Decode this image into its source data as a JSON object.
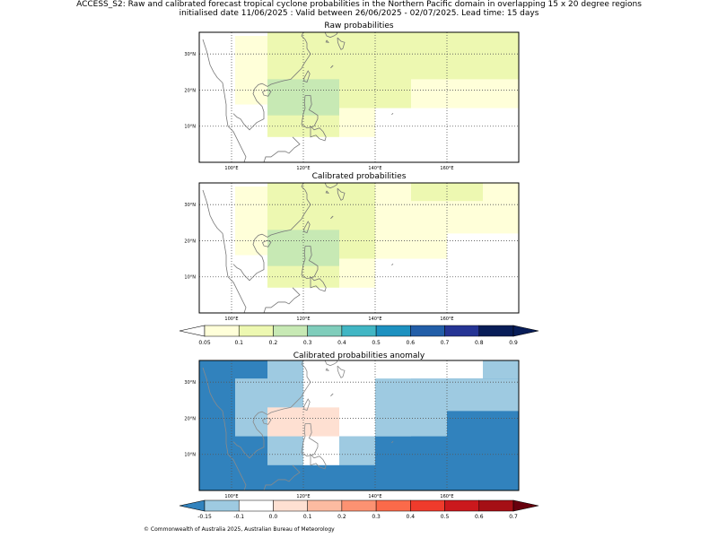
{
  "header": {
    "title_line1": "ACCESS_S2: Raw and calibrated forecast tropical cyclone probabilities in the Northern Pacific domain in overlapping 15 x 20 degree regions",
    "title_line2": "initialised date 11/06/2025 :  Valid between 26/06/2025 - 02/07/2025. Lead time: 15 days"
  },
  "map_extent": {
    "lon": [
      91,
      180
    ],
    "lat": [
      0,
      36
    ]
  },
  "gridlines": {
    "lon": [
      100,
      120,
      140,
      160
    ],
    "lat": [
      10,
      20,
      30
    ]
  },
  "lon_tick_labels": [
    "100°E",
    "120°E",
    "140°E",
    "160°E"
  ],
  "lat_tick_labels": [
    "10°N",
    "20°N",
    "30°N"
  ],
  "colors": {
    "coastline": "#777777",
    "land_anomaly": "#8a8a8a"
  },
  "panels": [
    {
      "title": "Raw probabilities",
      "cells": [
        {
          "lon": [
            101,
            110
          ],
          "lat": [
            16,
            35
          ],
          "color": "#ffffd9"
        },
        {
          "lon": [
            110,
            120
          ],
          "lat": [
            7,
            36
          ],
          "color": "#edf8b1"
        },
        {
          "lon": [
            110,
            120
          ],
          "lat": [
            13,
            23
          ],
          "color": "#c7e9b4"
        },
        {
          "lon": [
            120,
            130
          ],
          "lat": [
            7,
            36
          ],
          "color": "#edf8b1"
        },
        {
          "lon": [
            120,
            130
          ],
          "lat": [
            13,
            23
          ],
          "color": "#c7e9b4"
        },
        {
          "lon": [
            130,
            150
          ],
          "lat": [
            15,
            36
          ],
          "color": "#edf8b1"
        },
        {
          "lon": [
            150,
            180
          ],
          "lat": [
            15,
            36
          ],
          "color": "#ffffd9"
        },
        {
          "lon": [
            150,
            180
          ],
          "lat": [
            23,
            36
          ],
          "color": "#edf8b1"
        },
        {
          "lon": [
            130,
            140
          ],
          "lat": [
            7,
            15
          ],
          "color": "#ffffd9"
        }
      ]
    },
    {
      "title": "Calibrated probabilities",
      "cells": [
        {
          "lon": [
            101,
            110
          ],
          "lat": [
            16,
            35
          ],
          "color": "#ffffd9"
        },
        {
          "lon": [
            110,
            130
          ],
          "lat": [
            7,
            36
          ],
          "color": "#edf8b1"
        },
        {
          "lon": [
            110,
            130
          ],
          "lat": [
            13,
            23
          ],
          "color": "#c7e9b4"
        },
        {
          "lon": [
            130,
            140
          ],
          "lat": [
            15,
            36
          ],
          "color": "#edf8b1"
        },
        {
          "lon": [
            140,
            150
          ],
          "lat": [
            15,
            36
          ],
          "color": "#ffffd9"
        },
        {
          "lon": [
            150,
            160
          ],
          "lat": [
            15,
            36
          ],
          "color": "#ffffd9"
        },
        {
          "lon": [
            160,
            180
          ],
          "lat": [
            22,
            36
          ],
          "color": "#ffffd9"
        },
        {
          "lon": [
            150,
            170
          ],
          "lat": [
            31,
            36
          ],
          "color": "#edf8b1"
        },
        {
          "lon": [
            130,
            140
          ],
          "lat": [
            7,
            15
          ],
          "color": "#ffffd9"
        }
      ]
    },
    {
      "title": "Calibrated probabilities anomaly",
      "background": "#3182bd",
      "cells": [
        {
          "lon": [
            101,
            110
          ],
          "lat": [
            15,
            31
          ],
          "color": "#9ecae1"
        },
        {
          "lon": [
            110,
            120
          ],
          "lat": [
            7,
            36
          ],
          "color": "#9ecae1"
        },
        {
          "lon": [
            120,
            130
          ],
          "lat": [
            7,
            36
          ],
          "color": "#ffffff"
        },
        {
          "lon": [
            110,
            130
          ],
          "lat": [
            15,
            23
          ],
          "color": "#fee0d2"
        },
        {
          "lon": [
            130,
            140
          ],
          "lat": [
            7,
            15
          ],
          "color": "#9ecae1"
        },
        {
          "lon": [
            130,
            150
          ],
          "lat": [
            15,
            36
          ],
          "color": "#ffffff"
        },
        {
          "lon": [
            140,
            160
          ],
          "lat": [
            15,
            31
          ],
          "color": "#9ecae1"
        },
        {
          "lon": [
            150,
            170
          ],
          "lat": [
            31,
            36
          ],
          "color": "#ffffff"
        },
        {
          "lon": [
            170,
            180
          ],
          "lat": [
            31,
            36
          ],
          "color": "#9ecae1"
        },
        {
          "lon": [
            160,
            180
          ],
          "lat": [
            22,
            31
          ],
          "color": "#9ecae1"
        }
      ]
    }
  ],
  "colorbars": [
    {
      "labels": [
        "0.05",
        "0.1",
        "0.2",
        "0.3",
        "0.4",
        "0.5",
        "0.6",
        "0.7",
        "0.8",
        "0.9"
      ],
      "under": "#ffffff",
      "colors": [
        "#ffffd9",
        "#edf8b1",
        "#c7e9b4",
        "#7fcdbb",
        "#41b6c4",
        "#1d91c0",
        "#225ea8",
        "#253494",
        "#081d58"
      ],
      "over": "#081d58"
    },
    {
      "labels": [
        "-0.15",
        "-0.1",
        "0.0",
        "0.1",
        "0.2",
        "0.3",
        "0.4",
        "0.5",
        "0.6",
        "0.7"
      ],
      "under": "#3182bd",
      "colors": [
        "#9ecae1",
        "#ffffff",
        "#fee0d2",
        "#fcbba1",
        "#fc9272",
        "#fb6a4a",
        "#ef3b2c",
        "#cb181d",
        "#a50f15"
      ],
      "over": "#67000d"
    }
  ],
  "footer": "© Commonwealth of Australia 2025, Australian Bureau of Meteorology"
}
